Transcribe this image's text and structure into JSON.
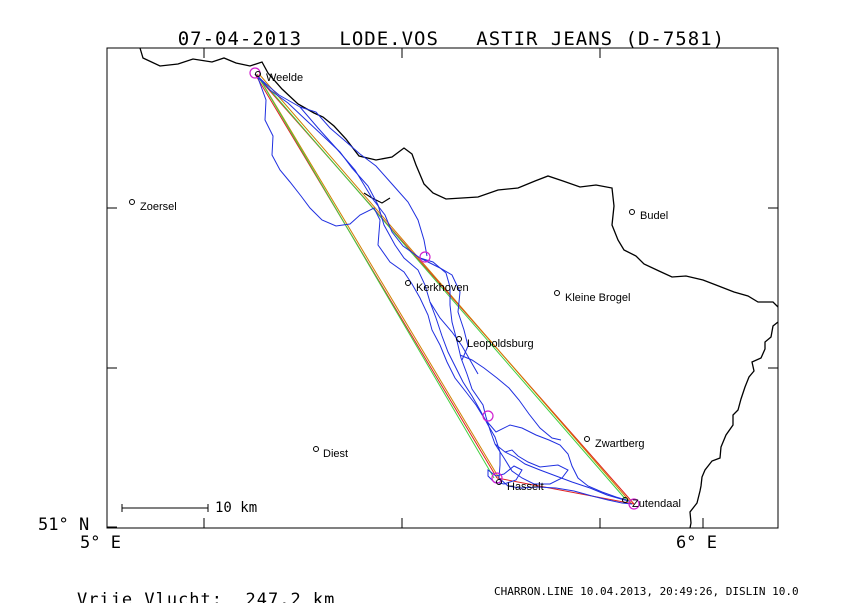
{
  "header": {
    "date": "07-04-2013",
    "pilot": "LODE.VOS",
    "glider": "ASTIR JEANS (D-7581)"
  },
  "axes": {
    "y_label": "51° N",
    "x_label_left": "5° E",
    "x_label_right": "6° E"
  },
  "scale_bar": {
    "label": "10 km"
  },
  "footer": {
    "distance_label": "Vrije Vlucht:",
    "distance_value": "247.2 km",
    "credit": "CHARRON.LINE 10.04.2013, 20:49:26, DISLIN 10.0"
  },
  "places": [
    {
      "name": "Weelde",
      "kind": "turnpoint"
    },
    {
      "name": "Zoersel",
      "kind": "town"
    },
    {
      "name": "Budel",
      "kind": "town"
    },
    {
      "name": "Kerkhoven",
      "kind": "town"
    },
    {
      "name": "Kleine Brogel",
      "kind": "town"
    },
    {
      "name": "Leopoldsburg",
      "kind": "town"
    },
    {
      "name": "Zwartberg",
      "kind": "town"
    },
    {
      "name": "Diest",
      "kind": "town"
    },
    {
      "name": "Hasselt",
      "kind": "turnpoint"
    },
    {
      "name": "Zutendaal",
      "kind": "turnpoint"
    }
  ],
  "colors": {
    "track": "#1f2fe0",
    "turnpoint_marker": "#d020d0",
    "task_leg_red": "#e02020",
    "task_leg_orange": "#d08000",
    "task_leg_green": "#40d040",
    "border": "#000000"
  }
}
